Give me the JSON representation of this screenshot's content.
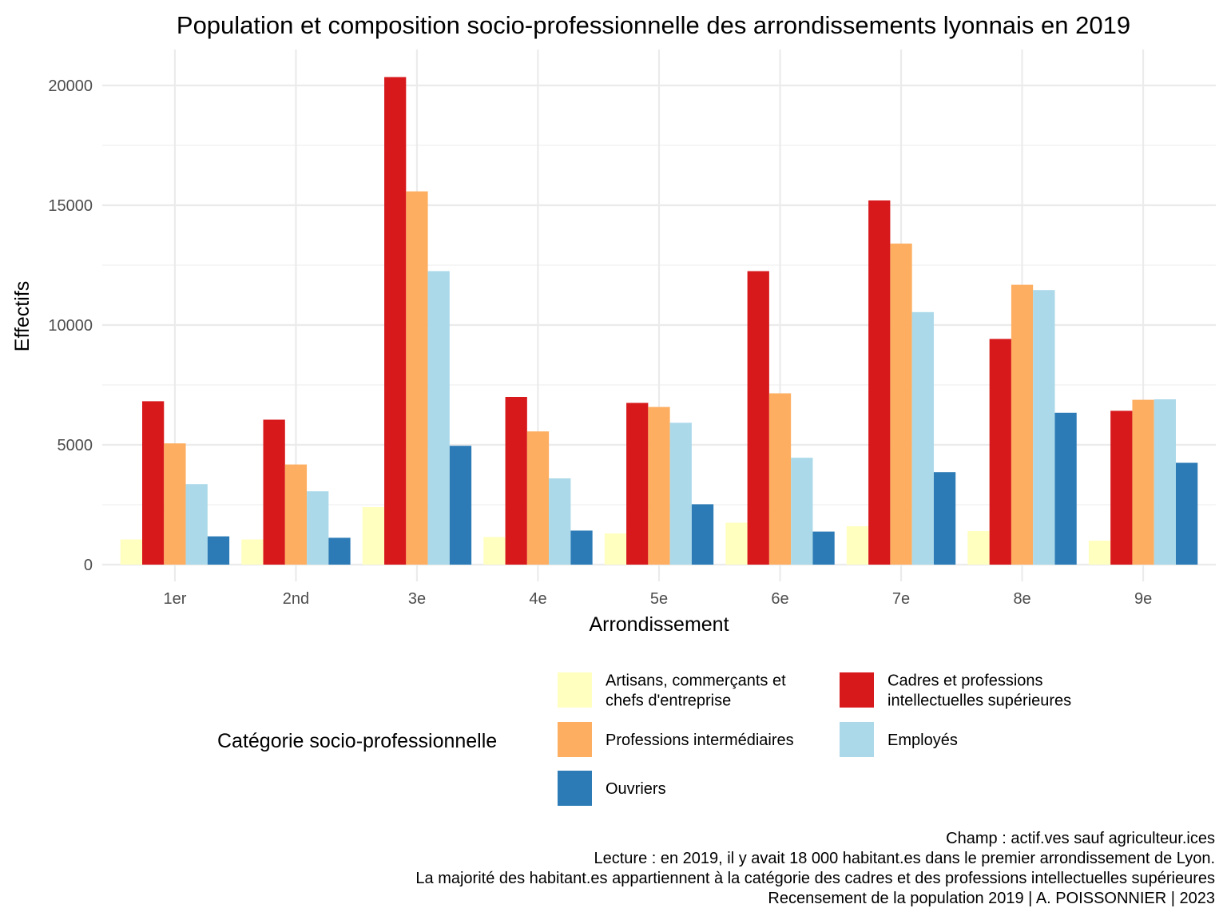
{
  "chart_data": {
    "type": "bar",
    "title": "Population et composition socio-professionnelle des arrondissements lyonnais en 2019",
    "xlabel": "Arrondissement",
    "ylabel": "Effectifs",
    "ylim": [
      -700,
      21500
    ],
    "yticks": [
      0,
      5000,
      10000,
      15000,
      20000
    ],
    "ytick_labels": [
      "0",
      "5000",
      "10000",
      "15000",
      "20000"
    ],
    "grid": true,
    "categories": [
      "1er",
      "2nd",
      "3e",
      "4e",
      "5e",
      "6e",
      "7e",
      "8e",
      "9e"
    ],
    "series": [
      {
        "name": "Artisans, commerçants et chefs d'entreprise",
        "color": "#ffffbf",
        "values": [
          1050,
          1050,
          2400,
          1150,
          1300,
          1750,
          1600,
          1400,
          1000
        ]
      },
      {
        "name": "Cadres et professions intellectuelles supérieures",
        "color": "#d7191c",
        "values": [
          6820,
          6050,
          20350,
          7000,
          6750,
          12250,
          15200,
          9420,
          6420
        ]
      },
      {
        "name": "Professions intermédiaires",
        "color": "#fdae61",
        "values": [
          5060,
          4180,
          15580,
          5560,
          6580,
          7150,
          13400,
          11680,
          6880
        ]
      },
      {
        "name": "Employés",
        "color": "#abd9e9",
        "values": [
          3360,
          3060,
          12250,
          3600,
          5920,
          4460,
          10540,
          11460,
          6900
        ]
      },
      {
        "name": "Ouvriers",
        "color": "#2c7bb6",
        "values": [
          1180,
          1120,
          4960,
          1420,
          2520,
          1380,
          3860,
          6340,
          4250
        ]
      }
    ],
    "legend": {
      "title": "Catégorie socio-professionnelle",
      "placement": "bottom",
      "items": [
        {
          "lines": [
            "Artisans, commerçants et",
            "chefs d'entreprise"
          ],
          "color": "#ffffbf"
        },
        {
          "lines": [
            "Cadres et professions",
            "intellectuelles supérieures"
          ],
          "color": "#d7191c"
        },
        {
          "lines": [
            "Professions intermédiaires"
          ],
          "color": "#fdae61"
        },
        {
          "lines": [
            "Employés"
          ],
          "color": "#abd9e9"
        },
        {
          "lines": [
            "Ouvriers"
          ],
          "color": "#2c7bb6"
        }
      ]
    },
    "caption": [
      "Champ : actif.ves sauf agriculteur.ices",
      "Lecture : en 2019, il y avait 18 000 habitant.es dans le premier arrondissement de Lyon.",
      "La majorité des habitant.es appartiennent à la catégorie des cadres et des professions intellectuelles supérieures",
      "Recensement de la population 2019 | A. POISSONNIER | 2023"
    ]
  }
}
